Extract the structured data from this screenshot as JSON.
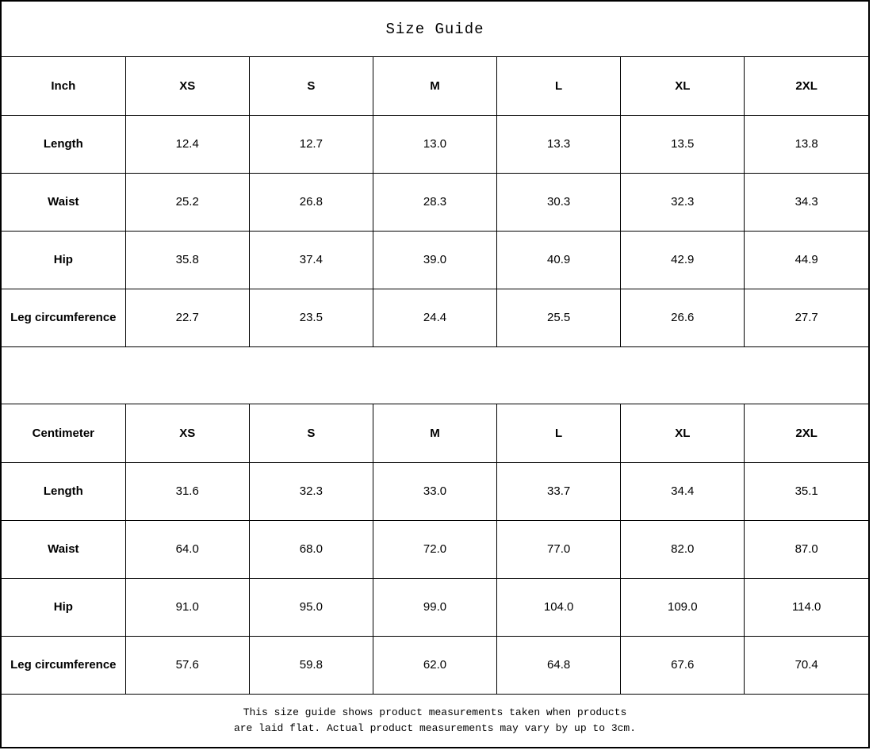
{
  "title": "Size Guide",
  "colors": {
    "background": "#ffffff",
    "border": "#000000",
    "text": "#000000"
  },
  "tables": [
    {
      "unit_header": "Inch",
      "size_headers": [
        "XS",
        "S",
        "M",
        "L",
        "XL",
        "2XL"
      ],
      "rows": [
        {
          "label": "Length",
          "values": [
            "12.4",
            "12.7",
            "13.0",
            "13.3",
            "13.5",
            "13.8"
          ]
        },
        {
          "label": "Waist",
          "values": [
            "25.2",
            "26.8",
            "28.3",
            "30.3",
            "32.3",
            "34.3"
          ]
        },
        {
          "label": "Hip",
          "values": [
            "35.8",
            "37.4",
            "39.0",
            "40.9",
            "42.9",
            "44.9"
          ]
        },
        {
          "label": "Leg circumference",
          "values": [
            "22.7",
            "23.5",
            "24.4",
            "25.5",
            "26.6",
            "27.7"
          ]
        }
      ]
    },
    {
      "unit_header": "Centimeter",
      "size_headers": [
        "XS",
        "S",
        "M",
        "L",
        "XL",
        "2XL"
      ],
      "rows": [
        {
          "label": "Length",
          "values": [
            "31.6",
            "32.3",
            "33.0",
            "33.7",
            "34.4",
            "35.1"
          ]
        },
        {
          "label": "Waist",
          "values": [
            "64.0",
            "68.0",
            "72.0",
            "77.0",
            "82.0",
            "87.0"
          ]
        },
        {
          "label": "Hip",
          "values": [
            "91.0",
            "95.0",
            "99.0",
            "104.0",
            "109.0",
            "114.0"
          ]
        },
        {
          "label": "Leg circumference",
          "values": [
            "57.6",
            "59.8",
            "62.0",
            "64.8",
            "67.6",
            "70.4"
          ]
        }
      ]
    }
  ],
  "footnote": {
    "line1": "This size guide shows product measurements taken when products",
    "line2": "are laid flat. Actual product measurements may vary by up to 3cm."
  }
}
